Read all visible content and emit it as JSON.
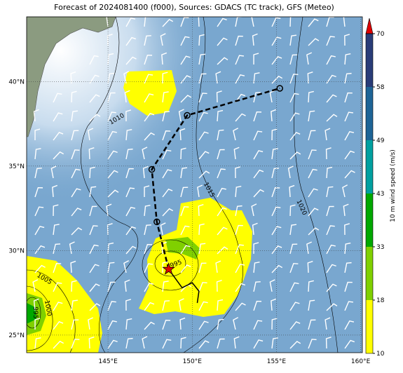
{
  "title": "Forecast of 2024081400 (f000), Sources: GDACS (TC track), GFS (Meteo)",
  "map": {
    "lon_range": [
      140.17,
      160.1
    ],
    "lat_range": [
      23.96,
      43.83
    ],
    "lon_ticks": [
      {
        "value": 145,
        "label": "145°E"
      },
      {
        "value": 150,
        "label": "150°E"
      },
      {
        "value": 155,
        "label": "155°E"
      },
      {
        "value": 160,
        "label": "160°E"
      }
    ],
    "lat_ticks": [
      {
        "value": 25,
        "label": "25°N"
      },
      {
        "value": 30,
        "label": "30°N"
      },
      {
        "value": 35,
        "label": "35°N"
      },
      {
        "value": 40,
        "label": "40°N"
      }
    ]
  },
  "track": {
    "forecast_lon": [
      148.6,
      147.9,
      147.6,
      149.7,
      155.2
    ],
    "forecast_lat": [
      28.9,
      31.7,
      34.8,
      38.0,
      39.6
    ],
    "past_lon": [
      148.6,
      149.4,
      150.0,
      150.4,
      150.3
    ],
    "past_lat": [
      28.9,
      27.8,
      28.1,
      27.6,
      26.9
    ]
  },
  "isobar_labels": [
    "1010",
    "1015",
    "1020",
    "1005",
    "1000",
    "995",
    "995"
  ],
  "colorbar": {
    "label": "10 m wind speed (m/s)",
    "ticks": [
      10,
      18,
      33,
      43,
      49,
      58,
      70
    ],
    "colors": [
      "#ffff00",
      "#80d000",
      "#00a800",
      "#00a0a0",
      "#1e6496",
      "#2a3c78"
    ],
    "extend_color": "#e00000"
  }
}
